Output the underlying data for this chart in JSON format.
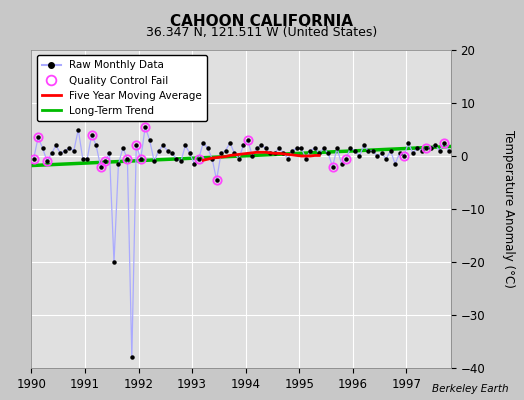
{
  "title": "CAHOON CALIFORNIA",
  "subtitle": "36.347 N, 121.511 W (United States)",
  "ylabel": "Temperature Anomaly (°C)",
  "watermark": "Berkeley Earth",
  "xlim": [
    1990.0,
    1997.83
  ],
  "ylim": [
    -40,
    20
  ],
  "yticks": [
    -40,
    -30,
    -20,
    -10,
    0,
    10,
    20
  ],
  "xticks": [
    1990,
    1991,
    1992,
    1993,
    1994,
    1995,
    1996,
    1997
  ],
  "bg_color": "#c8c8c8",
  "plot_bg_color": "#e0e0e0",
  "grid_color": "#ffffff",
  "raw_line_color": "#aaaaff",
  "raw_dot_color": "#000000",
  "qc_fail_color": "#ff44ff",
  "moving_avg_color": "#ff0000",
  "trend_color": "#00bb00",
  "raw_data_x": [
    1990.042,
    1990.125,
    1990.208,
    1990.292,
    1990.375,
    1990.458,
    1990.542,
    1990.625,
    1990.708,
    1990.792,
    1990.875,
    1990.958,
    1991.042,
    1991.125,
    1991.208,
    1991.292,
    1991.375,
    1991.458,
    1991.542,
    1991.625,
    1991.708,
    1991.792,
    1991.875,
    1991.958,
    1992.042,
    1992.125,
    1992.208,
    1992.292,
    1992.375,
    1992.458,
    1992.542,
    1992.625,
    1992.708,
    1992.792,
    1992.875,
    1992.958,
    1993.042,
    1993.125,
    1993.208,
    1993.292,
    1993.375,
    1993.458,
    1993.542,
    1993.625,
    1993.708,
    1993.792,
    1993.875,
    1993.958,
    1994.042,
    1994.125,
    1994.208,
    1994.292,
    1994.375,
    1994.458,
    1994.542,
    1994.625,
    1994.708,
    1994.792,
    1994.875,
    1994.958,
    1995.042,
    1995.125,
    1995.208,
    1995.292,
    1995.375,
    1995.458,
    1995.542,
    1995.625,
    1995.708,
    1995.792,
    1995.875,
    1995.958,
    1996.042,
    1996.125,
    1996.208,
    1996.292,
    1996.375,
    1996.458,
    1996.542,
    1996.625,
    1996.708,
    1996.792,
    1996.875,
    1996.958,
    1997.042,
    1997.125,
    1997.208,
    1997.292,
    1997.375,
    1997.458,
    1997.542,
    1997.625,
    1997.708,
    1997.792
  ],
  "raw_data_y": [
    -0.5,
    3.5,
    1.5,
    -1.0,
    0.5,
    2.0,
    0.5,
    1.0,
    1.5,
    1.0,
    5.0,
    -0.5,
    -0.5,
    4.0,
    2.0,
    -2.0,
    -1.0,
    0.5,
    -20.0,
    -1.5,
    1.5,
    -0.5,
    -38.0,
    2.0,
    -0.5,
    5.5,
    3.0,
    -1.0,
    1.0,
    2.0,
    1.0,
    0.5,
    -0.5,
    -1.0,
    2.0,
    0.5,
    -1.5,
    -0.5,
    2.5,
    1.5,
    -0.5,
    -4.5,
    0.5,
    1.0,
    2.5,
    0.5,
    -0.5,
    2.0,
    3.0,
    0.0,
    1.5,
    2.0,
    1.5,
    0.5,
    0.5,
    1.5,
    0.5,
    -0.5,
    1.0,
    1.5,
    1.5,
    -0.5,
    1.0,
    1.5,
    0.5,
    1.5,
    0.5,
    -2.0,
    1.5,
    -1.5,
    -0.5,
    1.5,
    1.0,
    0.0,
    2.0,
    1.0,
    1.0,
    0.0,
    0.5,
    -0.5,
    1.0,
    -1.5,
    0.5,
    0.0,
    2.5,
    0.5,
    1.5,
    1.0,
    1.5,
    1.5,
    2.0,
    1.0,
    2.5,
    1.0
  ],
  "qc_fail_points_x": [
    1990.042,
    1990.125,
    1990.292,
    1991.125,
    1991.292,
    1991.375,
    1991.792,
    1991.958,
    1992.042,
    1992.125,
    1993.125,
    1993.458,
    1994.042,
    1995.625,
    1995.875,
    1996.958,
    1997.375,
    1997.708
  ],
  "qc_fail_points_y": [
    -0.5,
    3.5,
    -1.0,
    4.0,
    -2.0,
    -1.0,
    -0.5,
    2.0,
    -0.5,
    5.5,
    -0.5,
    -4.5,
    3.0,
    -2.0,
    -0.5,
    0.0,
    1.5,
    2.5
  ],
  "moving_avg_x": [
    1993.208,
    1993.292,
    1993.375,
    1993.458,
    1993.542,
    1993.625,
    1993.708,
    1993.792,
    1993.875,
    1993.958,
    1994.042,
    1994.125,
    1994.208,
    1994.292,
    1994.375,
    1994.458,
    1994.542,
    1994.625,
    1994.708,
    1994.792,
    1994.875,
    1994.958,
    1995.042,
    1995.125,
    1995.208,
    1995.292,
    1995.375
  ],
  "moving_avg_y": [
    -0.8,
    -0.6,
    -0.4,
    -0.3,
    -0.2,
    -0.1,
    0.1,
    0.2,
    0.3,
    0.4,
    0.5,
    0.6,
    0.7,
    0.7,
    0.7,
    0.6,
    0.5,
    0.5,
    0.4,
    0.3,
    0.2,
    0.1,
    0.0,
    0.0,
    0.0,
    0.1,
    0.1
  ],
  "trend_x": [
    1990.0,
    1997.83
  ],
  "trend_y": [
    -1.8,
    1.8
  ]
}
